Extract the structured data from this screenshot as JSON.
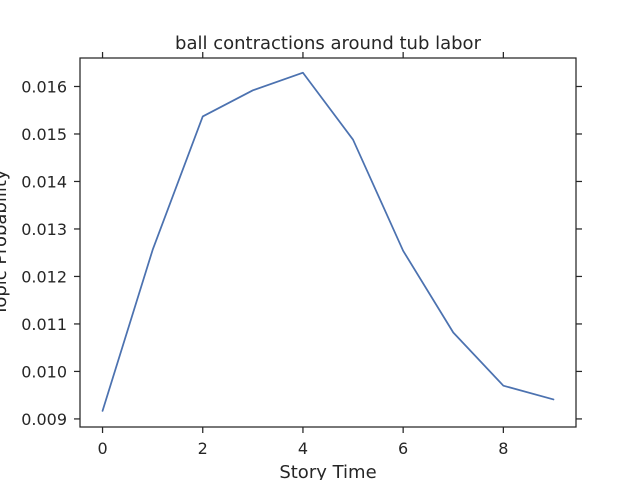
{
  "chart_data": {
    "type": "line",
    "title": "ball contractions around tub labor",
    "xlabel": "Story Time",
    "ylabel": "Topic Probability",
    "xlim": [
      -0.45,
      9.45
    ],
    "ylim": [
      0.00883,
      0.0166
    ],
    "xticks": [
      0,
      2,
      4,
      6,
      8
    ],
    "xtick_labels": [
      "0",
      "2",
      "4",
      "6",
      "8"
    ],
    "yticks": [
      0.009,
      0.01,
      0.011,
      0.012,
      0.013,
      0.014,
      0.015,
      0.016
    ],
    "ytick_labels": [
      "0.009",
      "0.010",
      "0.011",
      "0.012",
      "0.013",
      "0.014",
      "0.015",
      "0.016"
    ],
    "grid": false,
    "series": [
      {
        "x": [
          0,
          1,
          2,
          3,
          4,
          5,
          6,
          7,
          8,
          9
        ],
        "values": [
          0.00917,
          0.01256,
          0.01537,
          0.01592,
          0.01629,
          0.01488,
          0.01254,
          0.01082,
          0.0097,
          0.00941
        ],
        "color": "#4c72b0"
      }
    ]
  }
}
